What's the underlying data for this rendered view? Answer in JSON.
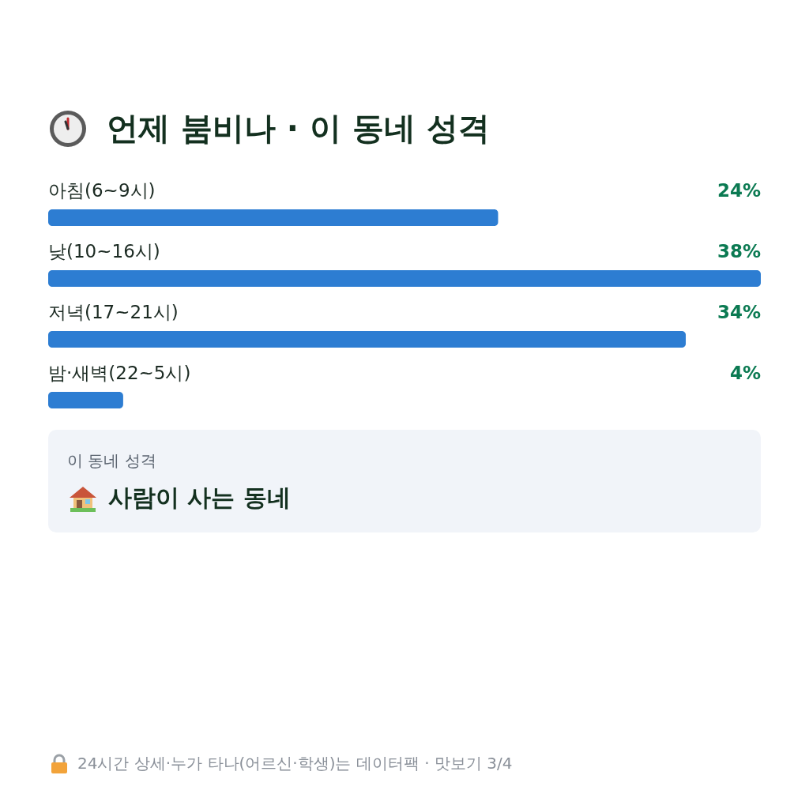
{
  "chart_data": {
    "type": "bar",
    "orientation": "horizontal",
    "title": "언제 붐비나 · 이 동네 성격",
    "categories": [
      "아침(6~9시)",
      "낮(10~16시)",
      "저녁(17~21시)",
      "밤·새벽(22~5시)"
    ],
    "values": [
      24,
      38,
      34,
      4
    ],
    "value_labels": [
      "24%",
      "38%",
      "34%",
      "4%"
    ],
    "color": "#2d7dd2",
    "tick_labels": false,
    "annotations": [
      "이 동네 성격",
      "사람이 사는 동네",
      "24시간 상세·누가 타나(어르신·학생)는 데이터팩 · 맛보기 3/4"
    ]
  }
}
